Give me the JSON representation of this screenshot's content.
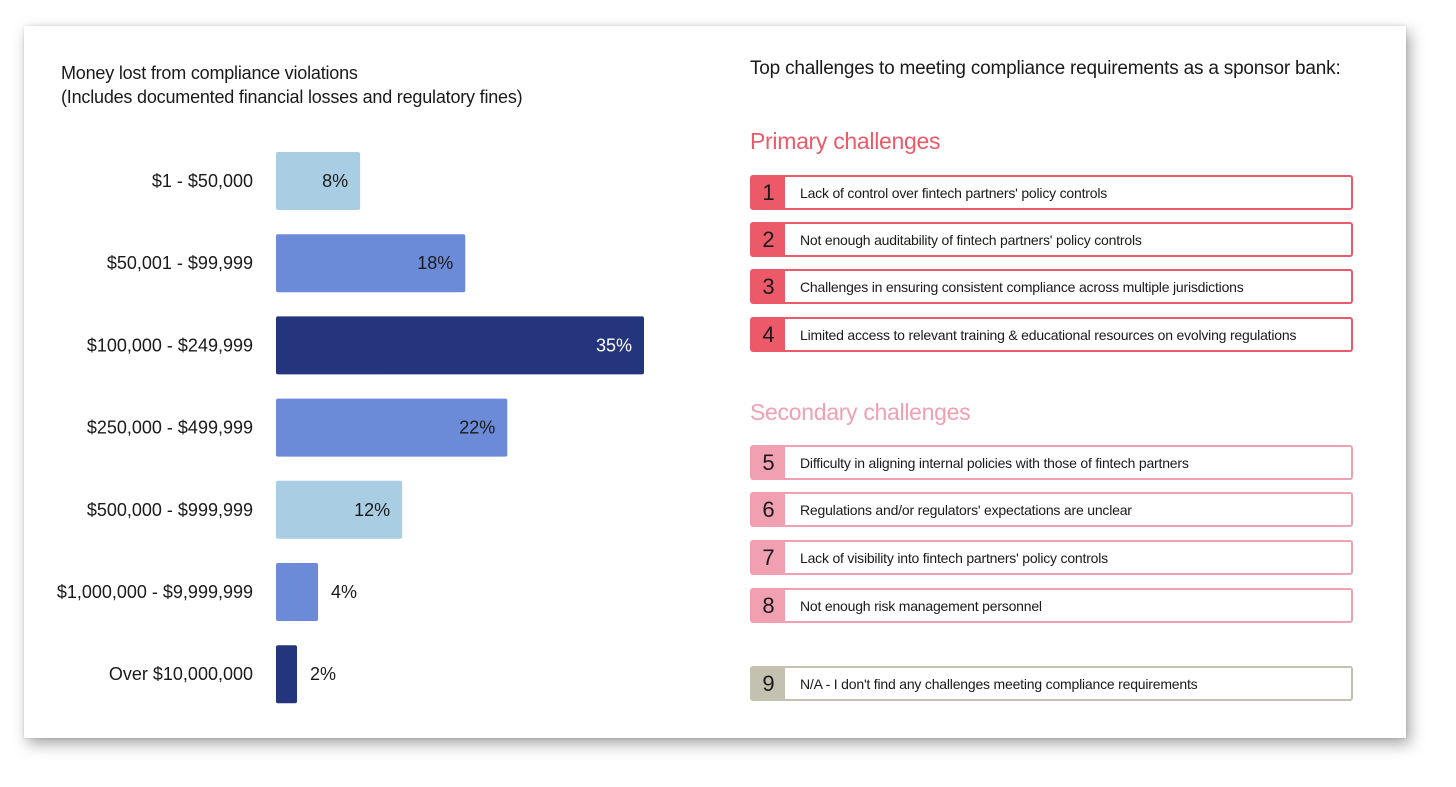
{
  "chart_data": {
    "type": "bar",
    "orientation": "horizontal",
    "title": "Money lost from compliance violations",
    "subtitle": "(Includes documented financial losses and regulatory fines)",
    "categories": [
      "$1 - $50,000",
      "$50,001 - $99,999",
      "$100,000 - $249,999",
      "$250,000 - $499,999",
      "$500,000 - $999,999",
      "$1,000,000 - $9,999,999",
      "Over $10,000,000"
    ],
    "values": [
      8,
      18,
      35,
      22,
      12,
      4,
      2
    ],
    "labels": [
      "8%",
      "18%",
      "35%",
      "22%",
      "12%",
      "4%",
      "2%"
    ],
    "bar_colors": [
      "#a9cee3",
      "#6b8ad8",
      "#24357e",
      "#6b8ad8",
      "#a9cee3",
      "#6b8ad8",
      "#24357e"
    ],
    "xlim": [
      0,
      35
    ],
    "grid": false,
    "legend": "none"
  },
  "challenges": {
    "heading": "Top challenges to meeting compliance requirements as a sponsor bank:",
    "primary_heading": "Primary challenges",
    "secondary_heading": "Secondary challenges",
    "items": [
      {
        "num": "1",
        "text": "Lack of control over fintech partners' policy controls",
        "group": "primary"
      },
      {
        "num": "2",
        "text": "Not enough auditability of fintech partners' policy controls",
        "group": "primary"
      },
      {
        "num": "3",
        "text": "Challenges in ensuring consistent compliance across multiple jurisdictions",
        "group": "primary"
      },
      {
        "num": "4",
        "text": "Limited access to relevant training & educational resources on evolving regulations",
        "group": "primary"
      },
      {
        "num": "5",
        "text": "Difficulty in aligning internal policies with those of fintech partners",
        "group": "secondary"
      },
      {
        "num": "6",
        "text": "Regulations and/or regulators' expectations are unclear",
        "group": "secondary"
      },
      {
        "num": "7",
        "text": "Lack of visibility into fintech partners' policy controls",
        "group": "secondary"
      },
      {
        "num": "8",
        "text": "Not enough risk management personnel",
        "group": "secondary"
      },
      {
        "num": "9",
        "text": "N/A - I don't find any challenges meeting compliance requirements",
        "group": "na"
      }
    ],
    "colors": {
      "primary": "#ec5a6a",
      "secondary": "#f1a0b2",
      "na": "#c3c2b0"
    }
  }
}
